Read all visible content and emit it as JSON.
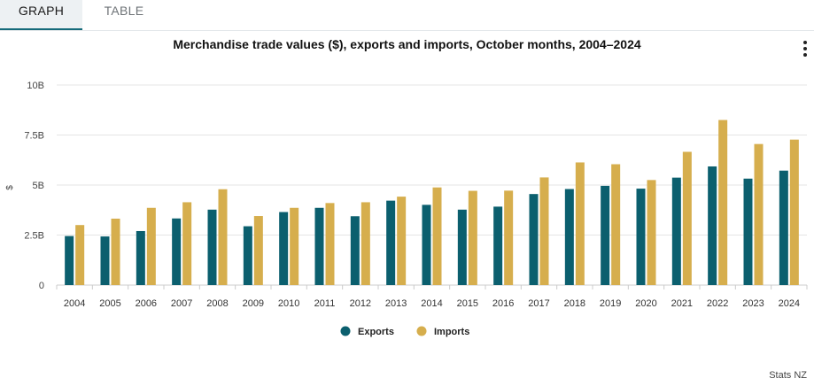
{
  "tabs": [
    {
      "label": "GRAPH",
      "active": true
    },
    {
      "label": "TABLE",
      "active": false
    }
  ],
  "menu_icon": "more-vertical-icon",
  "credit": "Stats NZ",
  "colors": {
    "exports": "#0b5f6e",
    "imports": "#d6ae4d",
    "grid": "#e4e4e4",
    "tab_accent": "#156a7a"
  },
  "chart_data": {
    "type": "bar",
    "title": "Merchandise trade values ($), exports and imports, October months, 2004–2024",
    "xlabel": "",
    "ylabel": "$",
    "ylim": [
      0,
      10000000000
    ],
    "yticks": [
      0,
      2500000000,
      5000000000,
      7500000000,
      10000000000
    ],
    "ytick_labels": [
      "0",
      "2.5B",
      "5B",
      "7.5B",
      "10B"
    ],
    "grid": true,
    "legend": "bottom-center",
    "categories": [
      "2004",
      "2005",
      "2006",
      "2007",
      "2008",
      "2009",
      "2010",
      "2011",
      "2012",
      "2013",
      "2014",
      "2015",
      "2016",
      "2017",
      "2018",
      "2019",
      "2020",
      "2021",
      "2022",
      "2023",
      "2024"
    ],
    "series": [
      {
        "name": "Exports",
        "color": "#0b5f6e",
        "values": [
          2450000000,
          2430000000,
          2700000000,
          3330000000,
          3770000000,
          2940000000,
          3650000000,
          3860000000,
          3440000000,
          4220000000,
          4010000000,
          3770000000,
          3920000000,
          4550000000,
          4800000000,
          4960000000,
          4820000000,
          5370000000,
          5930000000,
          5320000000,
          5720000000
        ]
      },
      {
        "name": "Imports",
        "color": "#d6ae4d",
        "values": [
          3000000000,
          3320000000,
          3860000000,
          4140000000,
          4790000000,
          3450000000,
          3860000000,
          4100000000,
          4140000000,
          4420000000,
          4880000000,
          4710000000,
          4720000000,
          5380000000,
          6130000000,
          6040000000,
          5250000000,
          6660000000,
          8250000000,
          7050000000,
          7270000000
        ]
      }
    ]
  }
}
